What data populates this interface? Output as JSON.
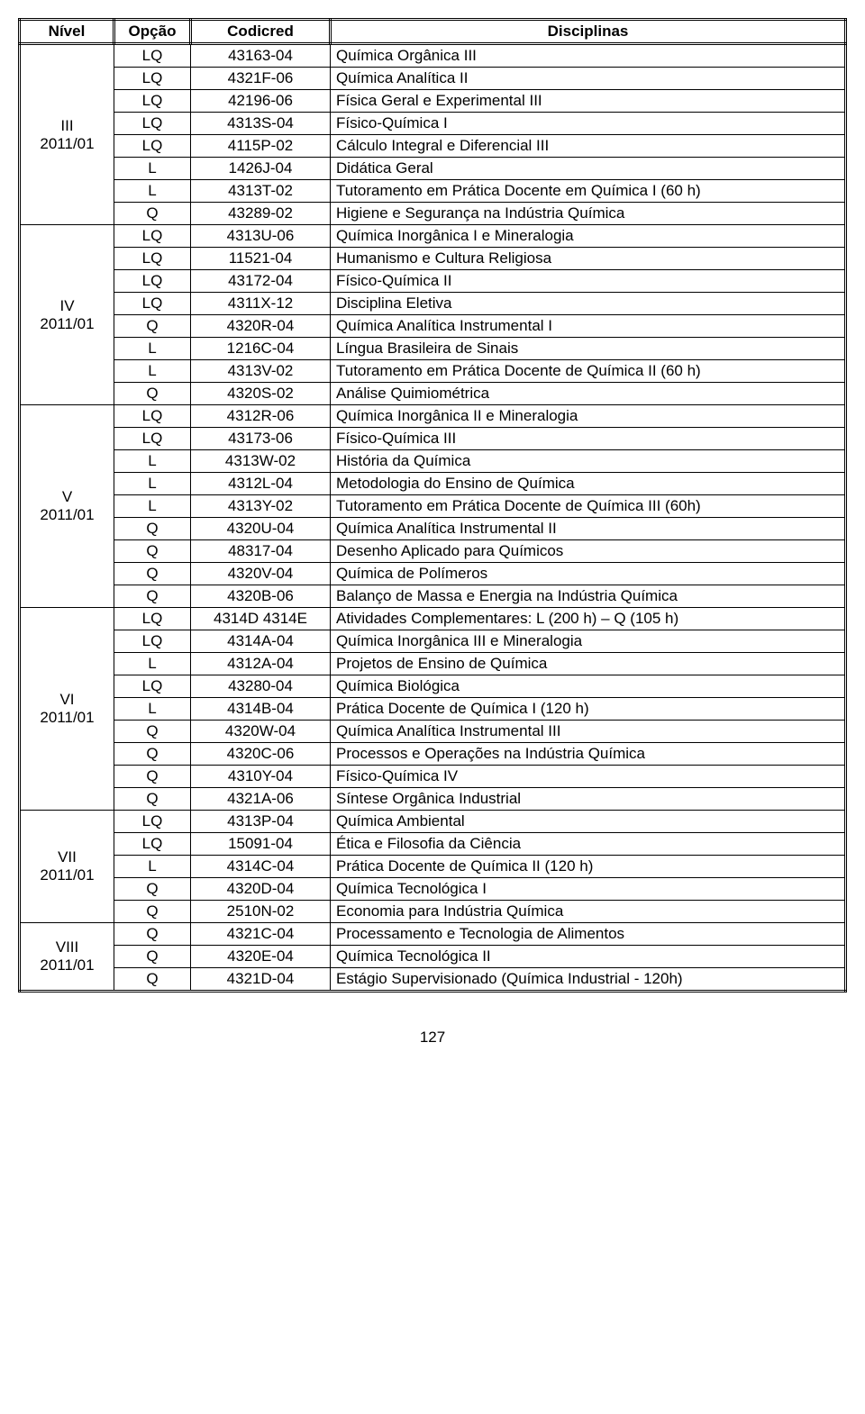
{
  "headers": {
    "nivel": "Nível",
    "opcao": "Opção",
    "codicred": "Codicred",
    "disciplinas": "Disciplinas"
  },
  "groups": [
    {
      "nivel": "III",
      "sub": "2011/01",
      "rows": [
        {
          "op": "LQ",
          "cod": "43163-04",
          "disc": "Química Orgânica III"
        },
        {
          "op": "LQ",
          "cod": "4321F-06",
          "disc": "Química Analítica II"
        },
        {
          "op": "LQ",
          "cod": "42196-06",
          "disc": "Física Geral e Experimental III"
        },
        {
          "op": "LQ",
          "cod": "4313S-04",
          "disc": "Físico-Química I"
        },
        {
          "op": "LQ",
          "cod": "4115P-02",
          "disc": "Cálculo Integral e Diferencial III"
        },
        {
          "op": "L",
          "cod": "1426J-04",
          "disc": "Didática Geral"
        },
        {
          "op": "L",
          "cod": "4313T-02",
          "disc": "Tutoramento em Prática Docente em Química I (60 h)"
        },
        {
          "op": "Q",
          "cod": "43289-02",
          "disc": "Higiene e Segurança na Indústria Química"
        }
      ]
    },
    {
      "nivel": "IV",
      "sub": "2011/01",
      "rows": [
        {
          "op": "LQ",
          "cod": "4313U-06",
          "disc": "Química Inorgânica I e Mineralogia"
        },
        {
          "op": "LQ",
          "cod": "11521-04",
          "disc": "Humanismo e Cultura Religiosa"
        },
        {
          "op": "LQ",
          "cod": "43172-04",
          "disc": "Físico-Química II"
        },
        {
          "op": "LQ",
          "cod": "4311X-12",
          "disc": "Disciplina Eletiva"
        },
        {
          "op": "Q",
          "cod": "4320R-04",
          "disc": "Química Analítica Instrumental I"
        },
        {
          "op": "L",
          "cod": "1216C-04",
          "disc": "Língua Brasileira de Sinais"
        },
        {
          "op": "L",
          "cod": "4313V-02",
          "disc": "Tutoramento em Prática Docente de Química II (60 h)"
        },
        {
          "op": "Q",
          "cod": "4320S-02",
          "disc": "Análise Quimiométrica"
        }
      ]
    },
    {
      "nivel": "V",
      "sub": "2011/01",
      "rows": [
        {
          "op": "LQ",
          "cod": "4312R-06",
          "disc": "Química Inorgânica II e Mineralogia"
        },
        {
          "op": "LQ",
          "cod": "43173-06",
          "disc": "Físico-Química III"
        },
        {
          "op": "L",
          "cod": "4313W-02",
          "disc": "História da Química"
        },
        {
          "op": "L",
          "cod": "4312L-04",
          "disc": "Metodologia do Ensino de Química"
        },
        {
          "op": "L",
          "cod": "4313Y-02",
          "disc": "Tutoramento em Prática Docente de Química III (60h)"
        },
        {
          "op": "Q",
          "cod": "4320U-04",
          "disc": "Química Analítica Instrumental II"
        },
        {
          "op": "Q",
          "cod": "48317-04",
          "disc": "Desenho Aplicado para Químicos"
        },
        {
          "op": "Q",
          "cod": "4320V-04",
          "disc": "Química de Polímeros"
        },
        {
          "op": "Q",
          "cod": "4320B-06",
          "disc": "Balanço de Massa e Energia na Indústria Química"
        }
      ]
    },
    {
      "nivel": "VI",
      "sub": "2011/01",
      "rows": [
        {
          "op": "LQ",
          "cod": "4314D   4314E",
          "disc": "Atividades Complementares: L (200 h) – Q (105 h)"
        },
        {
          "op": "LQ",
          "cod": "4314A-04",
          "disc": "Química Inorgânica III e Mineralogia"
        },
        {
          "op": "L",
          "cod": "4312A-04",
          "disc": "Projetos de Ensino de Química"
        },
        {
          "op": "LQ",
          "cod": "43280-04",
          "disc": "Química Biológica"
        },
        {
          "op": "L",
          "cod": "4314B-04",
          "disc": "Prática Docente de Química I (120 h)"
        },
        {
          "op": "Q",
          "cod": "4320W-04",
          "disc": "Química Analítica Instrumental III"
        },
        {
          "op": "Q",
          "cod": "4320C-06",
          "disc": "Processos e Operações na Indústria Química"
        },
        {
          "op": "Q",
          "cod": "4310Y-04",
          "disc": "Físico-Química IV"
        },
        {
          "op": "Q",
          "cod": "4321A-06",
          "disc": "Síntese Orgânica Industrial"
        }
      ]
    },
    {
      "nivel": "VII",
      "sub": "2011/01",
      "rows": [
        {
          "op": "LQ",
          "cod": "4313P-04",
          "disc": "Química Ambiental"
        },
        {
          "op": "LQ",
          "cod": "15091-04",
          "disc": "Ética e Filosofia da Ciência"
        },
        {
          "op": "L",
          "cod": "4314C-04",
          "disc": "Prática Docente de Química II (120 h)"
        },
        {
          "op": "Q",
          "cod": "4320D-04",
          "disc": "Química Tecnológica I"
        },
        {
          "op": "Q",
          "cod": "2510N-02",
          "disc": "Economia para Indústria Química"
        }
      ]
    },
    {
      "nivel": "VIII",
      "sub": "2011/01",
      "rows": [
        {
          "op": "Q",
          "cod": "4321C-04",
          "disc": "Processamento e Tecnologia de Alimentos"
        },
        {
          "op": "Q",
          "cod": "4320E-04",
          "disc": "Química Tecnológica II"
        },
        {
          "op": "Q",
          "cod": "4321D-04",
          "disc": "Estágio Supervisionado (Química Industrial - 120h)"
        }
      ]
    }
  ],
  "pageNumber": "127"
}
